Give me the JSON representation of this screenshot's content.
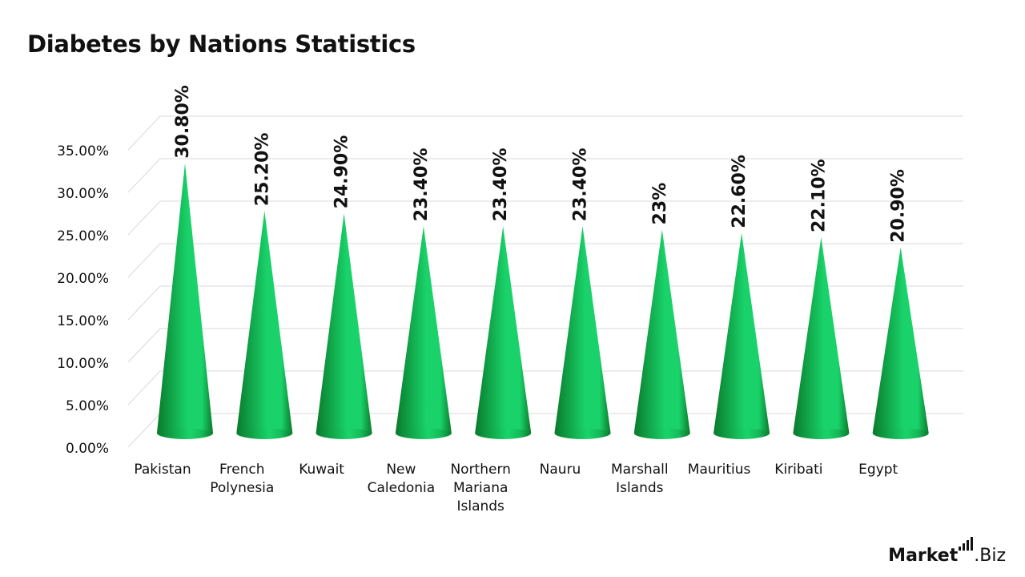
{
  "chart_data": {
    "type": "bar",
    "title": "Diabetes by Nations Statistics",
    "xlabel": "",
    "ylabel": "",
    "categories": [
      [
        "Pakistan"
      ],
      [
        "French",
        "Polynesia"
      ],
      [
        "Kuwait"
      ],
      [
        "New",
        "Caledonia"
      ],
      [
        "Northern",
        "Mariana",
        "Islands"
      ],
      [
        "Nauru"
      ],
      [
        "Marshall",
        "Islands"
      ],
      [
        "Mauritius"
      ],
      [
        "Kiribati"
      ],
      [
        "Egypt"
      ]
    ],
    "values": [
      30.8,
      25.2,
      24.9,
      23.4,
      23.4,
      23.4,
      23,
      22.6,
      22.1,
      20.9
    ],
    "data_labels": [
      "30.80%",
      "25.20%",
      "24.90%",
      "23.40%",
      "23.40%",
      "23.40%",
      "23%",
      "22.60%",
      "22.10%",
      "20.90%"
    ],
    "y_ticks": [
      "0.00%",
      "5.00%",
      "10.00%",
      "15.00%",
      "20.00%",
      "25.00%",
      "30.00%",
      "35.00%"
    ],
    "ylim": [
      0,
      35
    ],
    "grid": true,
    "legend": "none",
    "mark_shape": "cone",
    "colors": {
      "cone_dark": "#0a7a2c",
      "cone_light": "#19d36a",
      "grid": "#d9d9d9"
    }
  },
  "logo": {
    "part1": "Market",
    "part2": ".Biz"
  }
}
